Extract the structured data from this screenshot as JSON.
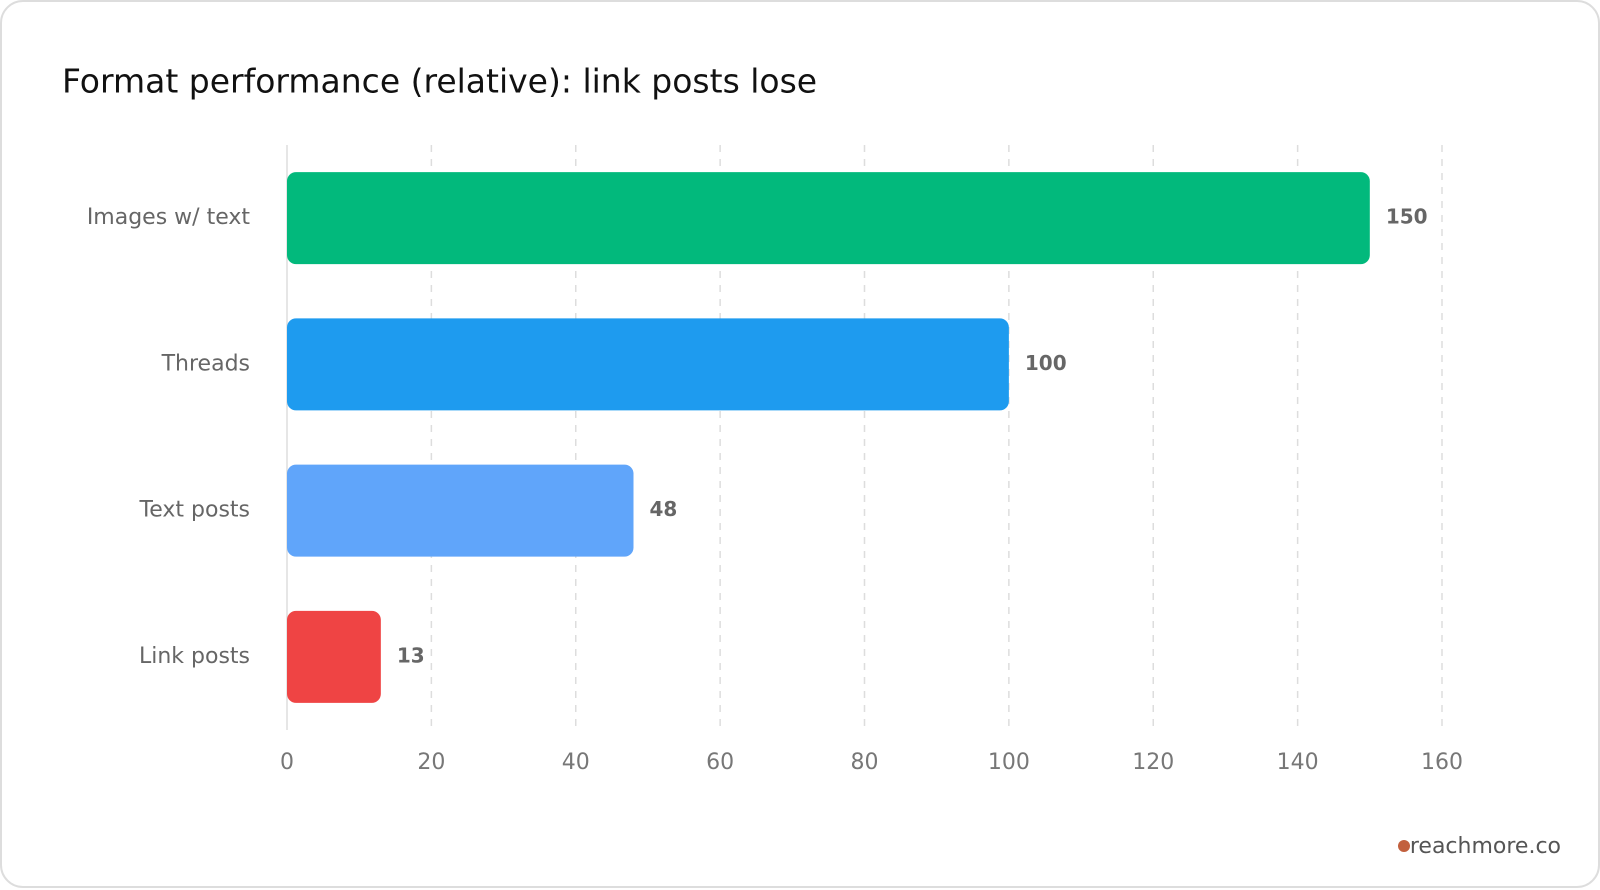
{
  "chart_data": {
    "type": "bar",
    "orientation": "horizontal",
    "title": "Format performance (relative): link posts lose",
    "categories": [
      "Images w/ text",
      "Threads",
      "Text posts",
      "Link posts"
    ],
    "values": [
      150,
      100,
      48,
      13
    ],
    "colors": [
      "#02b97c",
      "#1e9bef",
      "#60a5fa",
      "#ef4444"
    ],
    "xlim": [
      0,
      160
    ],
    "xticks": [
      0,
      20,
      40,
      60,
      80,
      100,
      120,
      140,
      160
    ],
    "grid": true
  },
  "footer": {
    "source": "reachmore.co",
    "dot_color": "#c2603e"
  }
}
